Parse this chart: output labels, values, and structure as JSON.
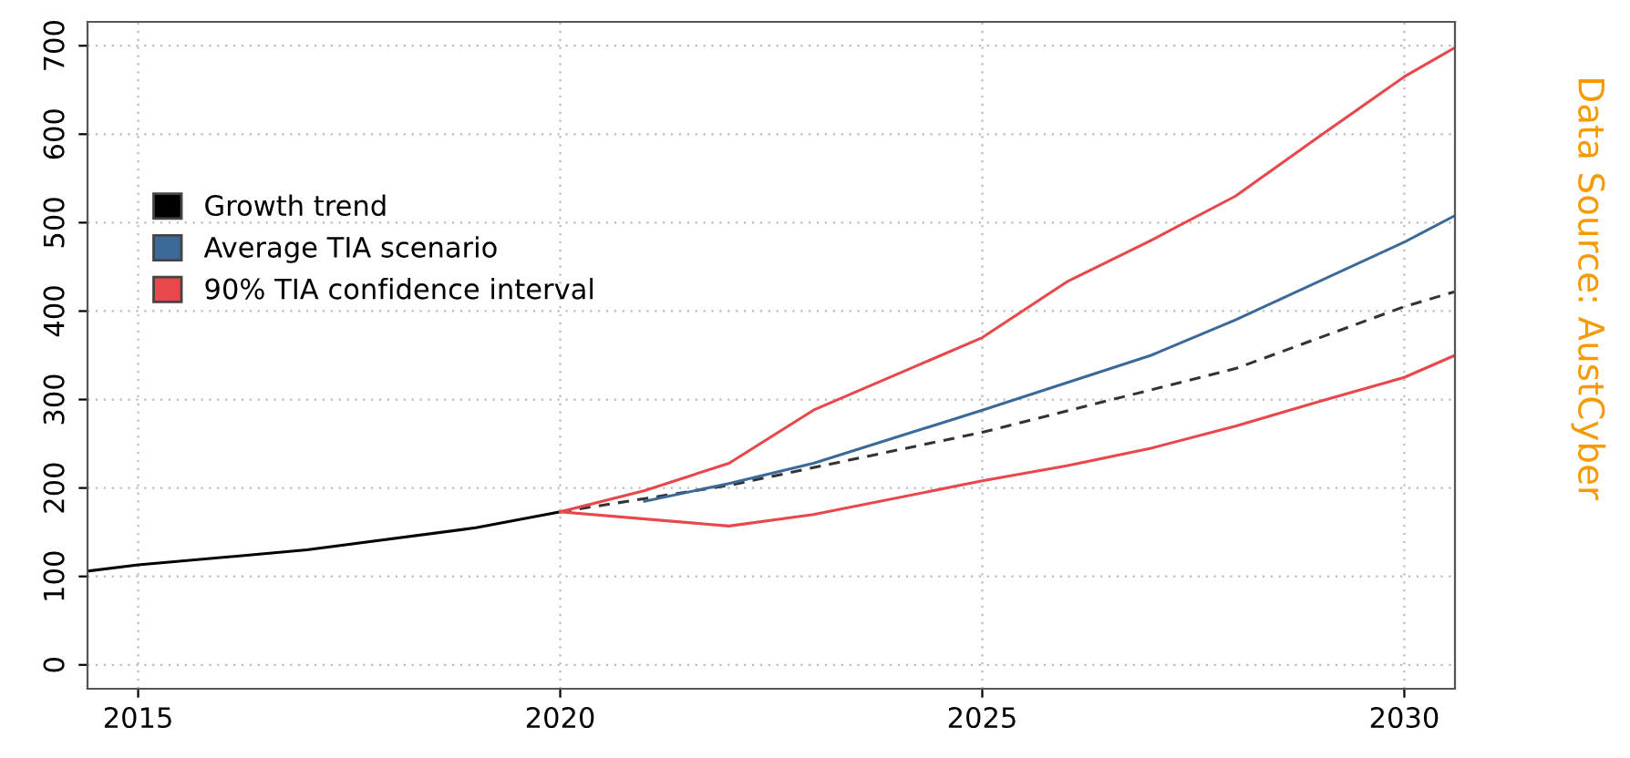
{
  "chart_data": {
    "type": "line",
    "series": [
      {
        "name": "Growth trend",
        "color": "#000000",
        "x": [
          2014.4,
          2015,
          2017,
          2019,
          2020
        ],
        "values": [
          106,
          113,
          130,
          155,
          173
        ]
      },
      {
        "color": "#333333",
        "line_style": "dashed",
        "x": [
          2020,
          2022,
          2025,
          2028,
          2030,
          2030.6
        ],
        "values": [
          173,
          203,
          263,
          335,
          405,
          422
        ]
      },
      {
        "name": "Average TIA scenario",
        "color": "#3b6a99",
        "x": [
          2021,
          2022,
          2023,
          2025,
          2027,
          2028,
          2030,
          2030.6
        ],
        "values": [
          185,
          205,
          228,
          288,
          350,
          390,
          478,
          508
        ]
      },
      {
        "name": "90% TIA confidence interval",
        "color": "#e8474b",
        "x": [
          2020,
          2021,
          2022,
          2023,
          2025,
          2026,
          2027,
          2028,
          2029,
          2030,
          2030.6
        ],
        "values": [
          173,
          197,
          228,
          288,
          370,
          433,
          480,
          530,
          598,
          665,
          698
        ]
      },
      {
        "color": "#e8474b",
        "x": [
          2020,
          2022,
          2023,
          2025,
          2026,
          2027,
          2028,
          2029,
          2030,
          2030.6
        ],
        "values": [
          173,
          157,
          170,
          208,
          225,
          245,
          270,
          298,
          325,
          350
        ]
      }
    ],
    "xlim": [
      2014.4,
      2030.6
    ],
    "ylim": [
      -27,
      727
    ],
    "xticks": [
      2015,
      2020,
      2025,
      2030
    ],
    "yticks": [
      0,
      100,
      200,
      300,
      400,
      500,
      600,
      700
    ],
    "grid": true,
    "legend": "top left",
    "annotations": [
      "Data Source: AustCyber"
    ]
  }
}
